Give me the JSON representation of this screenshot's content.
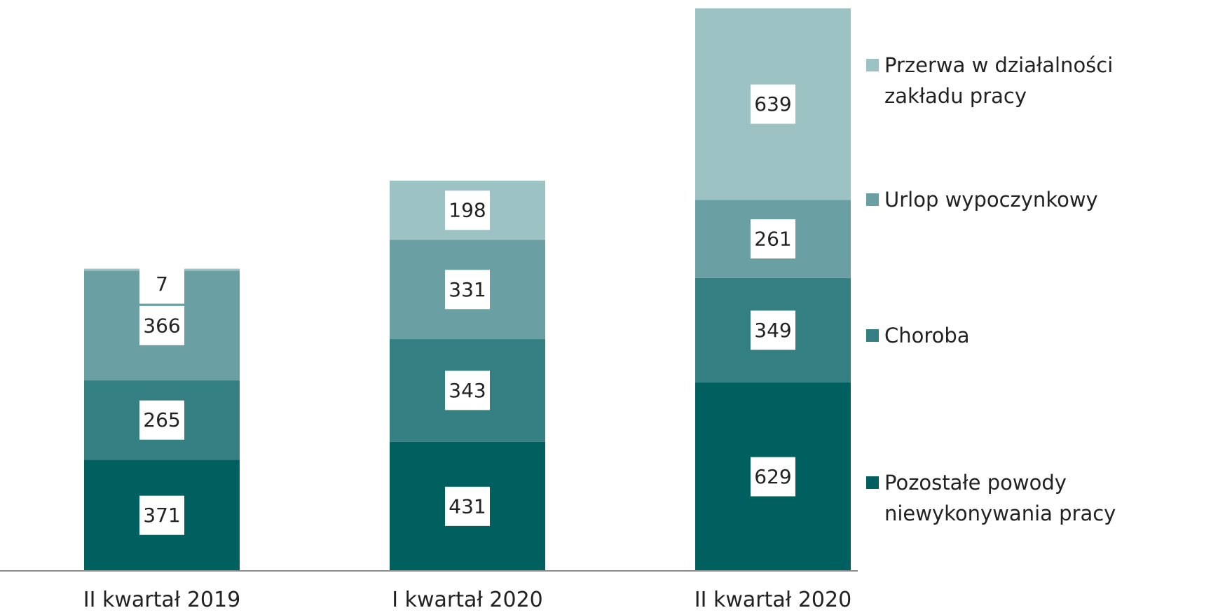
{
  "chart_data": {
    "type": "bar",
    "stacked": true,
    "categories": [
      "II kwartał 2019",
      "I kwartał 2020",
      "II kwartał 2020"
    ],
    "series": [
      {
        "name": "Pozostałe powody niewykonywania pracy",
        "values": [
          371,
          431,
          629
        ],
        "color": "#00605f"
      },
      {
        "name": "Choroba",
        "values": [
          265,
          343,
          349
        ],
        "color": "#347f82"
      },
      {
        "name": "Urlop wypoczynkowy",
        "values": [
          366,
          331,
          261
        ],
        "color": "#6a9fa3"
      },
      {
        "name": "Przerwa w działalności zakładu pracy",
        "values": [
          7,
          198,
          639
        ],
        "color": "#9dc2c4"
      }
    ],
    "title": "",
    "xlabel": "",
    "ylabel": "",
    "ylim": [
      0,
      1878
    ],
    "grid": false,
    "legend": "right"
  },
  "legend": {
    "items": [
      {
        "lines": [
          "Przerwa w działalności",
          "zakładu pracy"
        ],
        "color": "#9dc2c4"
      },
      {
        "lines": [
          "Urlop wypoczynkowy"
        ],
        "color": "#6a9fa3"
      },
      {
        "lines": [
          "Choroba"
        ],
        "color": "#347f82"
      },
      {
        "lines": [
          "Pozostałe powody",
          "niewykonywania pracy"
        ],
        "color": "#00605f"
      }
    ]
  }
}
